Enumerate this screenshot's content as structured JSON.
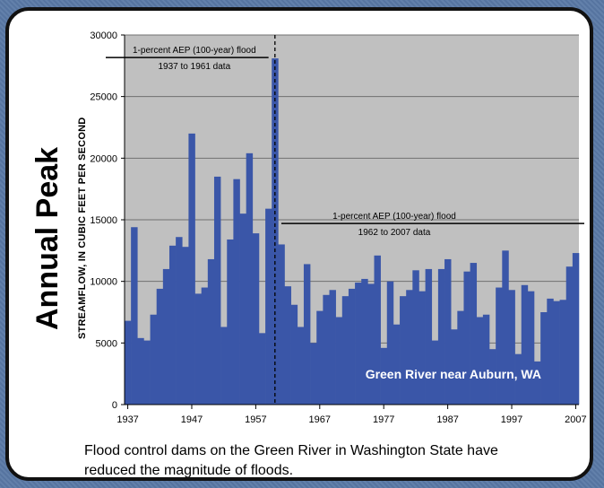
{
  "side_title": "Annual Peak",
  "caption": "Flood control dams on the Green River in Washington State have reduced the magnitude of floods.",
  "colors": {
    "bar": "#3a56a8",
    "plot_bg": "#c0c0c0",
    "frame": "#5a79a6"
  },
  "chart_data": {
    "type": "bar",
    "ylabel": "STREAMFLOW, IN CUBIC FEET PER SECOND",
    "xlabel": "",
    "ylim": [
      0,
      30000
    ],
    "yticks": [
      0,
      5000,
      10000,
      15000,
      20000,
      25000,
      30000
    ],
    "ytick_labels": [
      "0",
      "5000",
      "10000",
      "15000",
      "20000",
      "25000",
      "30000"
    ],
    "xticks": [
      1937,
      1947,
      1957,
      1967,
      1977,
      1987,
      1997,
      2007
    ],
    "xtick_labels": [
      "1937",
      "1947",
      "1957",
      "1967",
      "1977",
      "1987",
      "1997",
      "2007"
    ],
    "grid": true,
    "x": [
      1937,
      1938,
      1939,
      1940,
      1941,
      1942,
      1943,
      1944,
      1945,
      1946,
      1947,
      1948,
      1949,
      1950,
      1951,
      1952,
      1953,
      1954,
      1955,
      1956,
      1957,
      1958,
      1959,
      1960,
      1961,
      1962,
      1963,
      1964,
      1965,
      1966,
      1967,
      1968,
      1969,
      1970,
      1971,
      1972,
      1973,
      1974,
      1975,
      1976,
      1977,
      1978,
      1979,
      1980,
      1981,
      1982,
      1983,
      1984,
      1985,
      1986,
      1987,
      1988,
      1989,
      1990,
      1991,
      1992,
      1993,
      1994,
      1995,
      1996,
      1997,
      1998,
      1999,
      2000,
      2001,
      2002,
      2003,
      2004,
      2005,
      2006,
      2007
    ],
    "values": [
      6800,
      14400,
      5400,
      5200,
      7300,
      9400,
      11000,
      12900,
      13600,
      12800,
      22000,
      9000,
      9500,
      11800,
      18500,
      6300,
      13400,
      18300,
      15500,
      20400,
      13900,
      5800,
      15900,
      28100,
      13000,
      9600,
      8100,
      6300,
      11400,
      5000,
      7600,
      8900,
      9300,
      7100,
      8800,
      9400,
      9900,
      10200,
      9800,
      12100,
      4600,
      10000,
      6500,
      8800,
      9300,
      10900,
      9200,
      11000,
      5200,
      11000,
      11800,
      6100,
      7600,
      10800,
      11500,
      7100,
      7300,
      4500,
      9500,
      12500,
      9300,
      4100,
      9700,
      9200,
      3500,
      7500,
      8600,
      8400,
      8500,
      11200,
      12300
    ],
    "annotations": [
      {
        "line1": "1-percent AEP (100-year) flood",
        "line2": "1937 to 1961 data",
        "y": 28100,
        "x_start": 1937,
        "x_end": 1961
      },
      {
        "line1": "1-percent AEP (100-year) flood",
        "line2": "1962 to 2007 data",
        "y": 14700,
        "x_start": 1962,
        "x_end": 2007
      }
    ],
    "divider_after": 1961,
    "station_label": "Green River near Auburn, WA"
  }
}
